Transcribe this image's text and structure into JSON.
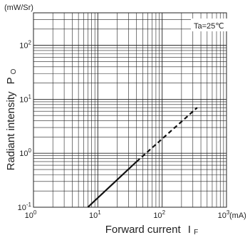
{
  "chart_data": {
    "type": "line",
    "scale": {
      "x": "log",
      "y": "log"
    },
    "xlim": [
      1,
      1000
    ],
    "ylim": [
      0.1,
      400
    ],
    "x_ticks": [
      {
        "value": 1,
        "base": "10",
        "exp": "0"
      },
      {
        "value": 10,
        "base": "10",
        "exp": "1"
      },
      {
        "value": 100,
        "base": "10",
        "exp": "2"
      },
      {
        "value": 1000,
        "base": "10",
        "exp": "3"
      }
    ],
    "y_ticks": [
      {
        "value": 0.1,
        "base": "10",
        "exp": "-1"
      },
      {
        "value": 1,
        "base": "10",
        "exp": "0"
      },
      {
        "value": 10,
        "base": "10",
        "exp": "1"
      },
      {
        "value": 100,
        "base": "10",
        "exp": "2"
      }
    ],
    "xlabel": {
      "text": "Forward current",
      "symbol": "I",
      "sub": "F"
    },
    "ylabel": {
      "text": "Radiant intensity",
      "symbol": "P",
      "sub": "O"
    },
    "x_unit": "(mA)",
    "y_unit": "(mW/Sr)",
    "annotation": "Ta=25℃",
    "grid": true,
    "series": [
      {
        "segments": [
          {
            "style": "solid",
            "points": [
              [
                7,
                0.1
              ],
              [
                40,
                0.7
              ]
            ]
          },
          {
            "style": "dashed",
            "points": [
              [
                40,
                0.7
              ],
              [
                350,
                7
              ]
            ]
          }
        ]
      }
    ]
  }
}
